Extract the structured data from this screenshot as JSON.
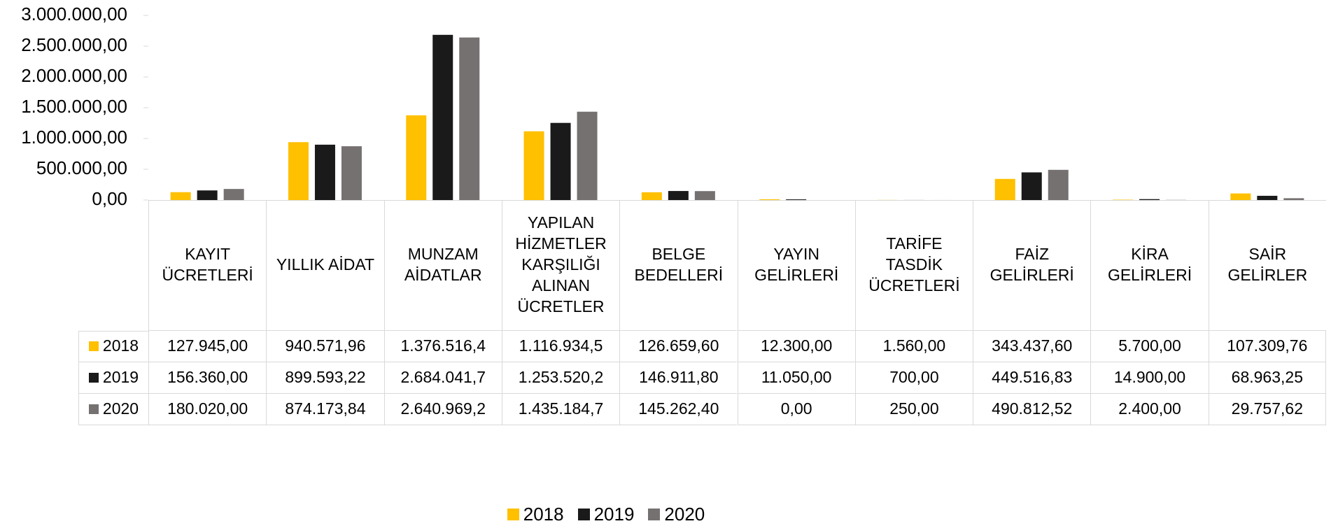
{
  "chart_data": {
    "type": "bar",
    "categories": [
      "KAYIT ÜCRETLERİ",
      "YILLIK AİDAT",
      "MUNZAM AİDATLAR",
      "YAPILAN HİZMETLER KARŞILIĞI ALINAN ÜCRETLER",
      "BELGE BEDELLERİ",
      "YAYIN GELİRLERİ",
      "TARİFE TASDİK ÜCRETLERİ",
      "FAİZ GELİRLERİ",
      "KİRA GELİRLERİ",
      "SAİR GELİRLER"
    ],
    "series": [
      {
        "name": "2018",
        "color": "#ffc000",
        "values": [
          127945.0,
          940571.96,
          1376516.4,
          1116934.5,
          126659.6,
          12300.0,
          1560.0,
          343437.6,
          5700.0,
          107309.76
        ],
        "value_labels": [
          "127.945,00",
          "940.571,96",
          "1.376.516,4",
          "1.116.934,5",
          "126.659,60",
          "12.300,00",
          "1.560,00",
          "343.437,60",
          "5.700,00",
          "107.309,76"
        ]
      },
      {
        "name": "2019",
        "color": "#1a1a1a",
        "values": [
          156360.0,
          899593.22,
          2684041.7,
          1253520.2,
          146911.8,
          11050.0,
          700.0,
          449516.83,
          14900.0,
          68963.25
        ],
        "value_labels": [
          "156.360,00",
          "899.593,22",
          "2.684.041,7",
          "1.253.520,2",
          "146.911,80",
          "11.050,00",
          "700,00",
          "449.516,83",
          "14.900,00",
          "68.963,25"
        ]
      },
      {
        "name": "2020",
        "color": "#767171",
        "values": [
          180020.0,
          874173.84,
          2640969.2,
          1435184.7,
          145262.4,
          0.0,
          250.0,
          490812.52,
          2400.0,
          29757.62
        ],
        "value_labels": [
          "180.020,00",
          "874.173,84",
          "2.640.969,2",
          "1.435.184,7",
          "145.262,40",
          "0,00",
          "250,00",
          "490.812,52",
          "2.400,00",
          "29.757,62"
        ]
      }
    ],
    "ylim": [
      0,
      3000000
    ],
    "yticks": [
      {
        "value": 0,
        "label": "0,00"
      },
      {
        "value": 500000,
        "label": "500.000,00"
      },
      {
        "value": 1000000,
        "label": "1.000.000,00"
      },
      {
        "value": 1500000,
        "label": "1.500.000,00"
      },
      {
        "value": 2000000,
        "label": "2.000.000,00"
      },
      {
        "value": 2500000,
        "label": "2.500.000,00"
      },
      {
        "value": 3000000,
        "label": "3.000.000,00"
      }
    ],
    "grid": false,
    "legend": "bottom"
  }
}
